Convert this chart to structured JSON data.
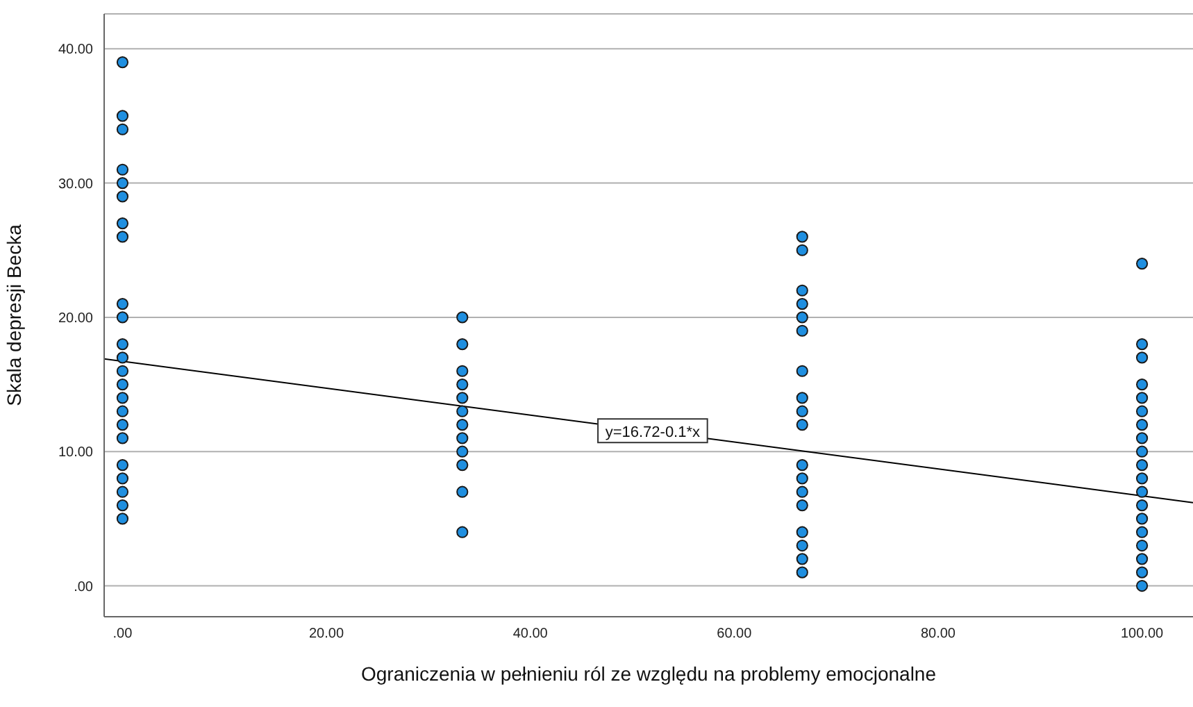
{
  "chart_data": {
    "type": "scatter",
    "xlabel": "Ograniczenia w pełnieniu ról ze względu na problemy emocjonalne",
    "ylabel": "Skala depresji Becka",
    "xlim": [
      -1.8,
      105
    ],
    "ylim": [
      -2.3,
      42.6
    ],
    "xticks": [
      {
        "value": 0,
        "label": ".00"
      },
      {
        "value": 20,
        "label": "20.00"
      },
      {
        "value": 40,
        "label": "40.00"
      },
      {
        "value": 60,
        "label": "60.00"
      },
      {
        "value": 80,
        "label": "80.00"
      },
      {
        "value": 100,
        "label": "100.00"
      }
    ],
    "yticks": [
      {
        "value": 0,
        "label": ".00"
      },
      {
        "value": 10,
        "label": "10.00"
      },
      {
        "value": 20,
        "label": "20.00"
      },
      {
        "value": 30,
        "label": "30.00"
      },
      {
        "value": 40,
        "label": "40.00"
      }
    ],
    "grid": "y",
    "marker": "circle",
    "legend": false,
    "annotations": [
      {
        "text": "y=16.72-0.1*x",
        "x": 52,
        "y": 11.5
      }
    ],
    "series": [
      {
        "color": "#1f8fe0",
        "x": [
          0,
          0,
          0,
          0,
          0,
          0,
          0,
          0,
          0,
          0,
          0,
          0,
          0,
          0,
          0,
          0,
          0,
          0,
          0,
          0,
          0,
          0,
          0,
          33.33,
          33.33,
          33.33,
          33.33,
          33.33,
          33.33,
          33.33,
          33.33,
          33.33,
          33.33,
          33.33,
          33.33,
          66.67,
          66.67,
          66.67,
          66.67,
          66.67,
          66.67,
          66.67,
          66.67,
          66.67,
          66.67,
          66.67,
          66.67,
          66.67,
          66.67,
          66.67,
          66.67,
          66.67,
          66.67,
          100,
          100,
          100,
          100,
          100,
          100,
          100,
          100,
          100,
          100,
          100,
          100,
          100,
          100,
          100,
          100,
          100,
          100,
          100
        ],
        "values": [
          39,
          35,
          34,
          31,
          30,
          29,
          27,
          26,
          21,
          20,
          18,
          17,
          16,
          15,
          14,
          13,
          12,
          11,
          9,
          8,
          7,
          6,
          5,
          20,
          18,
          16,
          15,
          14,
          13,
          12,
          11,
          10,
          9,
          7,
          4,
          26,
          25,
          22,
          21,
          20,
          19,
          16,
          14,
          13,
          12,
          9,
          8,
          7,
          6,
          4,
          3,
          2,
          1,
          24,
          18,
          17,
          15,
          14,
          13,
          12,
          11,
          10,
          9,
          8,
          7,
          6,
          5,
          4,
          3,
          2,
          1,
          0
        ]
      },
      {
        "type": "line",
        "color": "#000000",
        "marker": "none",
        "x": [
          -1.8,
          105
        ],
        "values": [
          16.9,
          6.2
        ]
      }
    ]
  }
}
